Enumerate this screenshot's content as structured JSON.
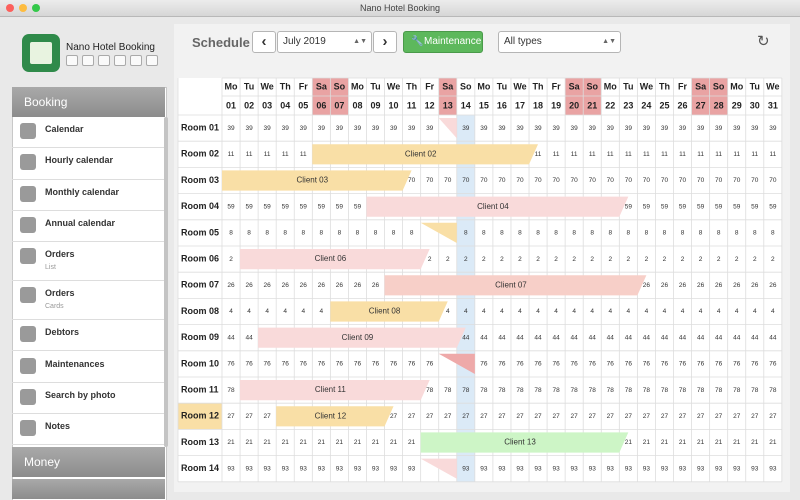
{
  "window_title": "Nano Hotel Booking",
  "app_name": "Nano Hotel Booking",
  "sidebar": {
    "sections": [
      {
        "title": "Booking",
        "items": [
          {
            "label": "Calendar"
          },
          {
            "label": "Hourly calendar"
          },
          {
            "label": "Monthly calendar"
          },
          {
            "label": "Annual calendar"
          },
          {
            "label": "Orders",
            "sublabel": "List"
          },
          {
            "label": "Orders",
            "sublabel": "Cards"
          },
          {
            "label": "Debtors"
          },
          {
            "label": "Maintenances"
          },
          {
            "label": "Search by photo"
          },
          {
            "label": "Notes"
          }
        ]
      },
      {
        "title": "Money",
        "items": []
      }
    ]
  },
  "toolbar": {
    "title": "Schedule",
    "month": "July 2019",
    "maintenance_button": "Maintenance",
    "type_filter": "All types"
  },
  "schedule": {
    "highlight_day": 14,
    "days": [
      {
        "weekday": "Mo",
        "day": "01"
      },
      {
        "weekday": "Tu",
        "day": "02"
      },
      {
        "weekday": "We",
        "day": "03"
      },
      {
        "weekday": "Th",
        "day": "04"
      },
      {
        "weekday": "Fr",
        "day": "05"
      },
      {
        "weekday": "Sa",
        "day": "06"
      },
      {
        "weekday": "So",
        "day": "07"
      },
      {
        "weekday": "Mo",
        "day": "08"
      },
      {
        "weekday": "Tu",
        "day": "09"
      },
      {
        "weekday": "We",
        "day": "10"
      },
      {
        "weekday": "Th",
        "day": "11"
      },
      {
        "weekday": "Fr",
        "day": "12"
      },
      {
        "weekday": "Sa",
        "day": "13"
      },
      {
        "weekday": "So",
        "day": "14"
      },
      {
        "weekday": "Mo",
        "day": "15"
      },
      {
        "weekday": "Tu",
        "day": "16"
      },
      {
        "weekday": "We",
        "day": "17"
      },
      {
        "weekday": "Th",
        "day": "18"
      },
      {
        "weekday": "Fr",
        "day": "19"
      },
      {
        "weekday": "Sa",
        "day": "20"
      },
      {
        "weekday": "So",
        "day": "21"
      },
      {
        "weekday": "Mo",
        "day": "22"
      },
      {
        "weekday": "Tu",
        "day": "23"
      },
      {
        "weekday": "We",
        "day": "24"
      },
      {
        "weekday": "Th",
        "day": "25"
      },
      {
        "weekday": "Fr",
        "day": "26"
      },
      {
        "weekday": "Sa",
        "day": "27"
      },
      {
        "weekday": "So",
        "day": "28"
      },
      {
        "weekday": "Mo",
        "day": "29"
      },
      {
        "weekday": "Tu",
        "day": "30"
      },
      {
        "weekday": "We",
        "day": "31"
      }
    ],
    "rooms": [
      {
        "name": "Room 01",
        "price": "39",
        "bookings": [
          {
            "from": 13,
            "to": 13,
            "color": "#f9dada"
          }
        ]
      },
      {
        "name": "Room 02",
        "price": "11",
        "bookings": [
          {
            "label": "Client 02",
            "from": 6,
            "to": 17,
            "color": "#f9dfa6"
          }
        ]
      },
      {
        "name": "Room 03",
        "price": "70",
        "bookings": [
          {
            "label": "Client 03",
            "from": 1,
            "to": 10,
            "color": "#f9dfa6"
          }
        ]
      },
      {
        "name": "Room 04",
        "price": "59",
        "bookings": [
          {
            "label": "Client 04",
            "from": 9,
            "to": 22,
            "color": "#f9dada"
          }
        ]
      },
      {
        "name": "Room 05",
        "price": "8",
        "bookings": [
          {
            "from": 12,
            "to": 13,
            "color": "#f9dfa6"
          }
        ]
      },
      {
        "name": "Room 06",
        "price": "2",
        "bookings": [
          {
            "label": "Client 06",
            "from": 2,
            "to": 11,
            "color": "#f9dada"
          }
        ]
      },
      {
        "name": "Room 07",
        "price": "26",
        "bookings": [
          {
            "label": "Client 07",
            "from": 10,
            "to": 23,
            "color": "#f7cfc8"
          }
        ]
      },
      {
        "name": "Room 08",
        "price": "4",
        "bookings": [
          {
            "label": "Client 08",
            "from": 7,
            "to": 12,
            "color": "#f9dfa6"
          }
        ]
      },
      {
        "name": "Room 09",
        "price": "44",
        "bookings": [
          {
            "label": "Client 09",
            "from": 3,
            "to": 13,
            "color": "#f9dada"
          }
        ]
      },
      {
        "name": "Room 10",
        "price": "76",
        "bookings": [
          {
            "from": 13,
            "to": 14,
            "color": "#eea9a9"
          }
        ]
      },
      {
        "name": "Room 11",
        "price": "78",
        "bookings": [
          {
            "label": "Client 11",
            "from": 2,
            "to": 11,
            "color": "#f9dada"
          }
        ]
      },
      {
        "name": "Room 12",
        "price": "27",
        "selected": true,
        "bookings": [
          {
            "label": "Client 12",
            "from": 4,
            "to": 9,
            "color": "#f9dfa6"
          }
        ]
      },
      {
        "name": "Room 13",
        "price": "21",
        "bookings": [
          {
            "label": "Client 13",
            "from": 12,
            "to": 22,
            "color": "#cdf5c6"
          }
        ]
      },
      {
        "name": "Room 14",
        "price": "93",
        "bookings": [
          {
            "from": 12,
            "to": 13,
            "color": "#f9dada"
          }
        ]
      }
    ]
  }
}
